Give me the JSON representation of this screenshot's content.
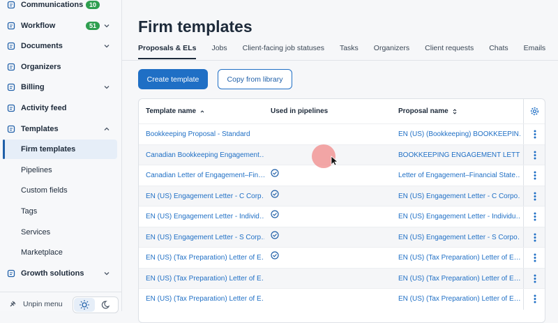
{
  "sidebar": {
    "items": [
      {
        "label": "Communications",
        "badge": "10"
      },
      {
        "label": "Workflow",
        "badge": "51",
        "chevron": "down"
      },
      {
        "label": "Documents",
        "chevron": "down"
      },
      {
        "label": "Organizers"
      },
      {
        "label": "Billing",
        "chevron": "down"
      },
      {
        "label": "Activity feed"
      },
      {
        "label": "Templates",
        "chevron": "up",
        "children": [
          {
            "label": "Firm templates",
            "selected": true
          },
          {
            "label": "Pipelines"
          },
          {
            "label": "Custom fields"
          },
          {
            "label": "Tags"
          },
          {
            "label": "Services"
          },
          {
            "label": "Marketplace"
          }
        ]
      },
      {
        "label": "Growth solutions",
        "chevron": "down"
      }
    ],
    "footer": "Unpin menu"
  },
  "main": {
    "title": "Firm templates",
    "tabs": [
      "Proposals & ELs",
      "Jobs",
      "Client-facing job statuses",
      "Tasks",
      "Organizers",
      "Client requests",
      "Chats",
      "Emails"
    ],
    "active_tab": 0,
    "buttons": [
      "Create template",
      "Copy from library"
    ],
    "table": {
      "columns": [
        {
          "label": "Template name",
          "sort": "asc"
        },
        {
          "label": "Used in pipelines"
        },
        {
          "label": "Proposal name",
          "sort": "both"
        }
      ],
      "rows": [
        {
          "template_name": "Bookkeeping Proposal - Standard",
          "used_in_pipelines": false,
          "proposal_name": "EN (US) (Bookkeeping) BOOKKEEPIN…"
        },
        {
          "template_name": "Canadian Bookkeeping Engagement…",
          "used_in_pipelines": false,
          "proposal_name": "BOOKKEEPING ENGAGEMENT LETTER"
        },
        {
          "template_name": "Canadian Letter of Engagement–Fin…",
          "used_in_pipelines": true,
          "proposal_name": "Letter of Engagement–Financial State…"
        },
        {
          "template_name": "EN (US) Engagement Letter - C Corp…",
          "used_in_pipelines": true,
          "proposal_name": "EN (US) Engagement Letter - C Corpo…"
        },
        {
          "template_name": "EN (US) Engagement Letter - Individ…",
          "used_in_pipelines": true,
          "proposal_name": "EN (US) Engagement Letter - Individu…"
        },
        {
          "template_name": "EN (US) Engagement Letter - S Corp…",
          "used_in_pipelines": true,
          "proposal_name": "EN (US) Engagement Letter - S Corpo…"
        },
        {
          "template_name": "EN (US) (Tax Preparation) Letter of E…",
          "used_in_pipelines": true,
          "proposal_name": "EN (US) (Tax Preparation) Letter of E…"
        },
        {
          "template_name": "EN (US) (Tax Preparation) Letter of E…",
          "used_in_pipelines": false,
          "proposal_name": "EN (US) (Tax Preparation) Letter of E…"
        },
        {
          "template_name": "EN (US) (Tax Preparation) Letter of E…",
          "used_in_pipelines": false,
          "proposal_name": "EN (US) (Tax Preparation) Letter of E…"
        }
      ]
    }
  }
}
